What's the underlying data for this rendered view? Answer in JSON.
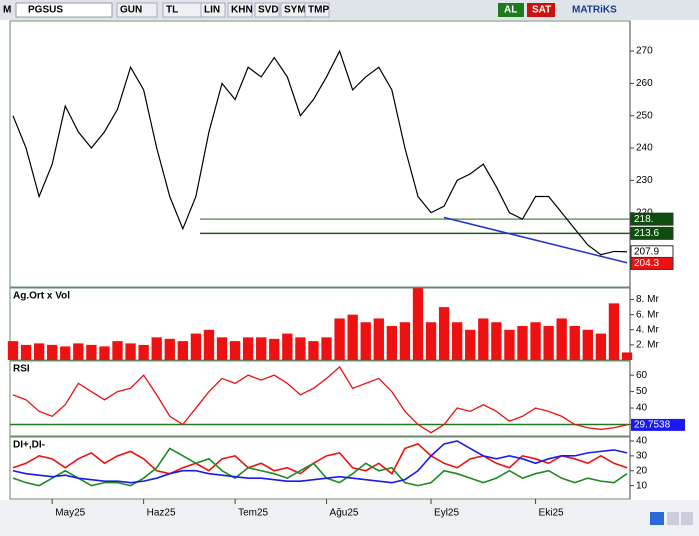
{
  "toolbar": {
    "logo": "M",
    "symbol": "PGSUS",
    "buttons": [
      "GUN",
      "TL",
      "LIN",
      "KHN",
      "SVD",
      "SYM",
      "TMP"
    ],
    "buy": "AL",
    "sell": "SAT",
    "brand": "MATRiKS"
  },
  "chart_data": [
    {
      "type": "line",
      "color": "#000000",
      "values": [
        250,
        240,
        225,
        235,
        253,
        245,
        240,
        245,
        252,
        265,
        258,
        240,
        225,
        215,
        225,
        245,
        260,
        255,
        265,
        262,
        268,
        262,
        250,
        255,
        262,
        270,
        258,
        262,
        265,
        258,
        240,
        225,
        220,
        222,
        230,
        232,
        235,
        228,
        220,
        218,
        225,
        225,
        220,
        215,
        210,
        207,
        208,
        207.9
      ],
      "ylim": [
        197,
        279
      ],
      "yticks": [
        220,
        230,
        240,
        250,
        260,
        270
      ],
      "levels": [
        {
          "value": 213.6,
          "color": "#1f5c1f"
        },
        {
          "value": 218,
          "color": "#6a9a6a"
        }
      ],
      "trendline": {
        "x": [
          33,
          47
        ],
        "y": [
          218.5,
          204.5
        ],
        "color": "#2233cc"
      },
      "price_labels": [
        {
          "value": 218,
          "label": "218.",
          "color": "#0d4d0d"
        },
        {
          "value": 213.6,
          "label": "213.6",
          "color": "#0d4d0d"
        },
        {
          "value": 207.9,
          "label": "207.9",
          "color": "#ffffff"
        },
        {
          "value": 204.3,
          "label": "204.3",
          "color": "#ee1111"
        }
      ]
    },
    {
      "type": "bar",
      "title": "Ag.Ort x Vol",
      "color": "#ee1111",
      "values": [
        2.5,
        2,
        2.2,
        2,
        1.8,
        2.2,
        2,
        1.8,
        2.5,
        2.2,
        2,
        3,
        2.8,
        2.5,
        3.5,
        4,
        3,
        2.5,
        3,
        3,
        2.8,
        3.5,
        3,
        2.5,
        3,
        5.5,
        6,
        5,
        5.5,
        4.5,
        5,
        9.5,
        5,
        7,
        5,
        4,
        5.5,
        5,
        4,
        4.5,
        5,
        4.5,
        5.5,
        4.5,
        4,
        3.5,
        7.5,
        1
      ],
      "ylim": [
        0,
        9.4
      ],
      "yticks": [
        {
          "value": 2,
          "label": "2. Mr"
        },
        {
          "value": 4,
          "label": "4. Mr"
        },
        {
          "value": 6,
          "label": "6. Mr"
        },
        {
          "value": 8,
          "label": "8. Mr"
        }
      ]
    },
    {
      "type": "line",
      "title": "RSI",
      "color": "#ee1111",
      "values": [
        48,
        45,
        38,
        35,
        42,
        55,
        50,
        45,
        50,
        52,
        60,
        48,
        35,
        30,
        40,
        50,
        58,
        55,
        60,
        57,
        60,
        55,
        48,
        52,
        58,
        65,
        52,
        55,
        58,
        50,
        38,
        30,
        25,
        30,
        40,
        38,
        42,
        38,
        32,
        35,
        40,
        38,
        35,
        30,
        28,
        27,
        28,
        29.7538
      ],
      "ylim": [
        23,
        68
      ],
      "yticks": [
        30,
        40,
        50,
        60
      ],
      "levels": [
        {
          "value": 30,
          "color": "#1f7a1f"
        }
      ],
      "current_value": 29.7538
    },
    {
      "type": "multiline",
      "title": "DI+,DI-",
      "categories": [
        null,
        null,
        null,
        "May25",
        null,
        null,
        null,
        null,
        null,
        null,
        "Haz25",
        null,
        null,
        null,
        null,
        null,
        null,
        "Tem25",
        null,
        null,
        null,
        null,
        null,
        null,
        "Ağu25",
        null,
        null,
        null,
        null,
        null,
        null,
        null,
        "Eyl25",
        null,
        null,
        null,
        null,
        null,
        null,
        null,
        "Eki25",
        null,
        null,
        null,
        null,
        null,
        null,
        null
      ],
      "series": [
        {
          "color": "#ee1111",
          "values": [
            22,
            25,
            30,
            28,
            22,
            28,
            32,
            25,
            30,
            33,
            28,
            20,
            18,
            22,
            25,
            20,
            28,
            30,
            22,
            25,
            20,
            22,
            18,
            25,
            30,
            32,
            22,
            20,
            25,
            18,
            35,
            38,
            30,
            25,
            22,
            28,
            30,
            25,
            22,
            30,
            28,
            25,
            30,
            28,
            25,
            30,
            25,
            22
          ]
        },
        {
          "color": "#1f8a1f",
          "values": [
            15,
            12,
            10,
            15,
            20,
            15,
            10,
            12,
            12,
            10,
            15,
            22,
            35,
            30,
            25,
            28,
            20,
            15,
            22,
            20,
            18,
            15,
            20,
            25,
            15,
            12,
            18,
            25,
            20,
            22,
            12,
            10,
            12,
            20,
            18,
            15,
            12,
            15,
            20,
            15,
            18,
            20,
            15,
            12,
            15,
            13,
            12,
            18
          ]
        },
        {
          "color": "#1a1aee",
          "values": [
            20,
            18,
            17,
            16,
            17,
            15,
            14,
            13,
            13,
            12,
            13,
            15,
            18,
            20,
            20,
            18,
            17,
            16,
            15,
            15,
            14,
            13,
            13,
            14,
            15,
            16,
            15,
            14,
            13,
            12,
            14,
            20,
            30,
            38,
            40,
            35,
            30,
            28,
            30,
            28,
            25,
            28,
            30,
            30,
            32,
            33,
            34,
            32
          ]
        }
      ],
      "ylim": [
        1,
        42
      ],
      "yticks": [
        10,
        20,
        30,
        40
      ]
    }
  ]
}
